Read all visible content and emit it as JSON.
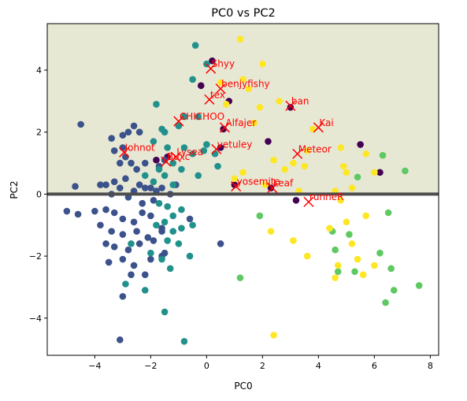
{
  "chart_data": {
    "type": "scatter",
    "title": "PC0 vs PC2",
    "xlabel": "PC0",
    "ylabel": "PC2",
    "xlim": [
      -5.7,
      8.3
    ],
    "ylim": [
      -5.2,
      5.5
    ],
    "xticks": [
      -4,
      -2,
      0,
      2,
      4,
      6,
      8
    ],
    "yticks": [
      -4,
      -2,
      0,
      2,
      4
    ],
    "grid": false,
    "colors": {
      "top_shade": "#e6e8d4",
      "divider": "#4d4d4d",
      "marker": "#ff0000",
      "label": "#ff0000",
      "classes": [
        "#440154",
        "#3b528b",
        "#21918c",
        "#5ec962",
        "#fde725"
      ]
    },
    "horizontal_line_y": 0,
    "series": [
      {
        "class": 0,
        "points": [
          [
            0.2,
            4.3
          ],
          [
            -0.2,
            3.5
          ],
          [
            0.8,
            3.0
          ],
          [
            0.6,
            2.1
          ],
          [
            0.5,
            1.5
          ],
          [
            2.2,
            1.7
          ],
          [
            3.0,
            2.8
          ],
          [
            -1.8,
            1.1
          ],
          [
            -1.4,
            1.2
          ],
          [
            1.0,
            0.3
          ],
          [
            3.2,
            -0.2
          ],
          [
            5.5,
            1.6
          ],
          [
            6.2,
            0.7
          ],
          [
            2.3,
            0.2
          ]
        ]
      },
      {
        "class": 1,
        "points": [
          [
            -4.5,
            2.25
          ],
          [
            -3.0,
            1.9
          ],
          [
            -2.8,
            2.0
          ],
          [
            -2.6,
            2.2
          ],
          [
            -2.4,
            2.0
          ],
          [
            -3.4,
            1.8
          ],
          [
            -3.3,
            1.4
          ],
          [
            -3.0,
            1.5
          ],
          [
            -2.9,
            1.2
          ],
          [
            -3.1,
            1.0
          ],
          [
            -2.7,
            1.0
          ],
          [
            -2.5,
            0.8
          ],
          [
            -2.2,
            1.0
          ],
          [
            -1.7,
            0.9
          ],
          [
            -1.5,
            1.1
          ],
          [
            -3.6,
            0.3
          ],
          [
            -3.3,
            0.4
          ],
          [
            -3.1,
            0.2
          ],
          [
            -2.9,
            0.5
          ],
          [
            -2.6,
            0.1
          ],
          [
            -2.4,
            0.3
          ],
          [
            -2.2,
            0.2
          ],
          [
            -2.0,
            0.2
          ],
          [
            -1.8,
            0.1
          ],
          [
            -1.6,
            0.2
          ],
          [
            -1.3,
            0.0
          ],
          [
            -1.1,
            0.3
          ],
          [
            -4.7,
            0.25
          ],
          [
            -3.8,
            0.3
          ],
          [
            -3.4,
            0.0
          ],
          [
            -2.8,
            -0.1
          ],
          [
            -2.3,
            -0.3
          ],
          [
            -1.9,
            -0.2
          ],
          [
            -5.0,
            -0.55
          ],
          [
            -4.6,
            -0.65
          ],
          [
            -4.0,
            -0.55
          ],
          [
            -3.6,
            -0.5
          ],
          [
            -3.3,
            -0.6
          ],
          [
            -3.0,
            -0.8
          ],
          [
            -2.6,
            -0.9
          ],
          [
            -2.3,
            -0.6
          ],
          [
            -2.0,
            -0.7
          ],
          [
            -3.8,
            -1.0
          ],
          [
            -3.4,
            -1.2
          ],
          [
            -3.0,
            -1.3
          ],
          [
            -2.5,
            -1.2
          ],
          [
            -2.1,
            -1.4
          ],
          [
            -1.6,
            -1.2
          ],
          [
            -3.3,
            -1.7
          ],
          [
            -2.8,
            -1.8
          ],
          [
            -2.4,
            -1.6
          ],
          [
            -1.9,
            -1.5
          ],
          [
            -1.5,
            -1.9
          ],
          [
            -3.0,
            -2.1
          ],
          [
            -2.6,
            -2.3
          ],
          [
            -2.0,
            -2.1
          ],
          [
            -1.6,
            -2.0
          ],
          [
            -3.5,
            -2.2
          ],
          [
            -3.0,
            -3.3
          ],
          [
            -3.1,
            -4.7
          ],
          [
            -3.6,
            -1.6
          ],
          [
            -2.2,
            -2.6
          ],
          [
            -1.6,
            -1.1
          ],
          [
            -0.6,
            -0.8
          ],
          [
            0.5,
            -1.6
          ],
          [
            -2.7,
            -2.6
          ]
        ]
      },
      {
        "class": 2,
        "points": [
          [
            -0.4,
            4.8
          ],
          [
            0.0,
            4.2
          ],
          [
            -0.5,
            3.7
          ],
          [
            -1.8,
            2.9
          ],
          [
            -1.6,
            2.1
          ],
          [
            -1.5,
            2.0
          ],
          [
            -0.8,
            2.5
          ],
          [
            -1.0,
            2.2
          ],
          [
            -0.3,
            2.5
          ],
          [
            -1.9,
            1.7
          ],
          [
            -1.4,
            1.5
          ],
          [
            -1.2,
            1.0
          ],
          [
            -1.7,
            0.8
          ],
          [
            -1.5,
            0.6
          ],
          [
            -1.2,
            0.3
          ],
          [
            -0.8,
            1.5
          ],
          [
            -0.5,
            1.3
          ],
          [
            0.0,
            1.6
          ],
          [
            0.3,
            1.3
          ],
          [
            -0.1,
            1.4
          ],
          [
            -0.9,
            0.8
          ],
          [
            -0.3,
            0.6
          ],
          [
            0.4,
            0.9
          ],
          [
            -2.2,
            0.6
          ],
          [
            -1.9,
            0.4
          ],
          [
            -1.7,
            -0.3
          ],
          [
            -1.4,
            -0.4
          ],
          [
            -1.2,
            -0.7
          ],
          [
            -0.9,
            -0.5
          ],
          [
            -0.5,
            -1.0
          ],
          [
            -1.8,
            -1.0
          ],
          [
            -1.5,
            -0.9
          ],
          [
            -1.2,
            -1.2
          ],
          [
            -1.4,
            -1.5
          ],
          [
            -1.0,
            -1.6
          ],
          [
            -1.6,
            -2.1
          ],
          [
            -1.3,
            -2.4
          ],
          [
            -0.6,
            -2.0
          ],
          [
            -0.9,
            -1.1
          ],
          [
            -2.9,
            -2.9
          ],
          [
            -2.7,
            -1.6
          ],
          [
            -1.5,
            -3.8
          ],
          [
            -0.8,
            -4.75
          ],
          [
            -2.2,
            -3.1
          ],
          [
            -2.0,
            -1.9
          ]
        ]
      },
      {
        "class": 3,
        "points": [
          [
            6.3,
            1.25
          ],
          [
            7.1,
            0.75
          ],
          [
            5.4,
            0.55
          ],
          [
            6.5,
            -0.6
          ],
          [
            4.5,
            -1.2
          ],
          [
            5.1,
            -1.3
          ],
          [
            6.2,
            -1.9
          ],
          [
            6.6,
            -2.4
          ],
          [
            5.3,
            -2.5
          ],
          [
            4.6,
            -1.8
          ],
          [
            4.7,
            -2.5
          ],
          [
            6.7,
            -3.1
          ],
          [
            6.4,
            -3.5
          ],
          [
            7.6,
            -2.95
          ],
          [
            1.9,
            -0.7
          ],
          [
            1.2,
            -2.7
          ]
        ]
      },
      {
        "class": 4,
        "points": [
          [
            1.2,
            5.0
          ],
          [
            2.0,
            4.2
          ],
          [
            0.5,
            3.6
          ],
          [
            1.3,
            3.7
          ],
          [
            1.5,
            3.4
          ],
          [
            0.7,
            2.9
          ],
          [
            1.9,
            2.8
          ],
          [
            2.6,
            3.0
          ],
          [
            3.8,
            2.1
          ],
          [
            1.7,
            2.3
          ],
          [
            3.6,
            1.4
          ],
          [
            4.8,
            1.5
          ],
          [
            5.7,
            1.3
          ],
          [
            2.4,
            1.1
          ],
          [
            2.8,
            0.8
          ],
          [
            3.1,
            1.0
          ],
          [
            3.5,
            0.9
          ],
          [
            4.9,
            0.9
          ],
          [
            5.0,
            0.7
          ],
          [
            6.0,
            0.7
          ],
          [
            1.3,
            0.7
          ],
          [
            1.0,
            0.5
          ],
          [
            2.1,
            0.3
          ],
          [
            3.3,
            0.1
          ],
          [
            4.6,
            0.1
          ],
          [
            5.2,
            0.2
          ],
          [
            4.8,
            -0.2
          ],
          [
            5.7,
            -0.7
          ],
          [
            5.0,
            -0.9
          ],
          [
            4.4,
            -1.1
          ],
          [
            2.3,
            -1.2
          ],
          [
            3.1,
            -1.5
          ],
          [
            3.6,
            -2.0
          ],
          [
            4.7,
            -2.3
          ],
          [
            4.6,
            -2.7
          ],
          [
            5.6,
            -2.6
          ],
          [
            5.2,
            -1.6
          ],
          [
            6.0,
            -2.3
          ],
          [
            5.4,
            -2.1
          ],
          [
            2.4,
            -4.55
          ]
        ]
      }
    ],
    "annotations": [
      {
        "label": "Shyy",
        "x": 0.15,
        "y": 4.05
      },
      {
        "label": "benjyfishy",
        "x": 0.5,
        "y": 3.4
      },
      {
        "label": "tex",
        "x": 0.1,
        "y": 3.05
      },
      {
        "label": "ban",
        "x": 3.0,
        "y": 2.85
      },
      {
        "label": "CHICHOO",
        "x": -1.0,
        "y": 2.35
      },
      {
        "label": "Alfajer",
        "x": 0.65,
        "y": 2.15
      },
      {
        "label": "Kai",
        "x": 4.0,
        "y": 2.15
      },
      {
        "label": "vetuley",
        "x": 0.35,
        "y": 1.45
      },
      {
        "label": "Meteor",
        "x": 3.25,
        "y": 1.3
      },
      {
        "label": "Johnot",
        "x": -2.95,
        "y": 1.35
      },
      {
        "label": "Lysea",
        "x": -1.1,
        "y": 1.2
      },
      {
        "label": "Buxc",
        "x": -1.45,
        "y": 1.05
      },
      {
        "label": "yosemite",
        "x": 1.05,
        "y": 0.25
      },
      {
        "label": "Leaf",
        "x": 2.35,
        "y": 0.2
      },
      {
        "label": "runneR",
        "x": 3.65,
        "y": -0.25
      }
    ]
  }
}
